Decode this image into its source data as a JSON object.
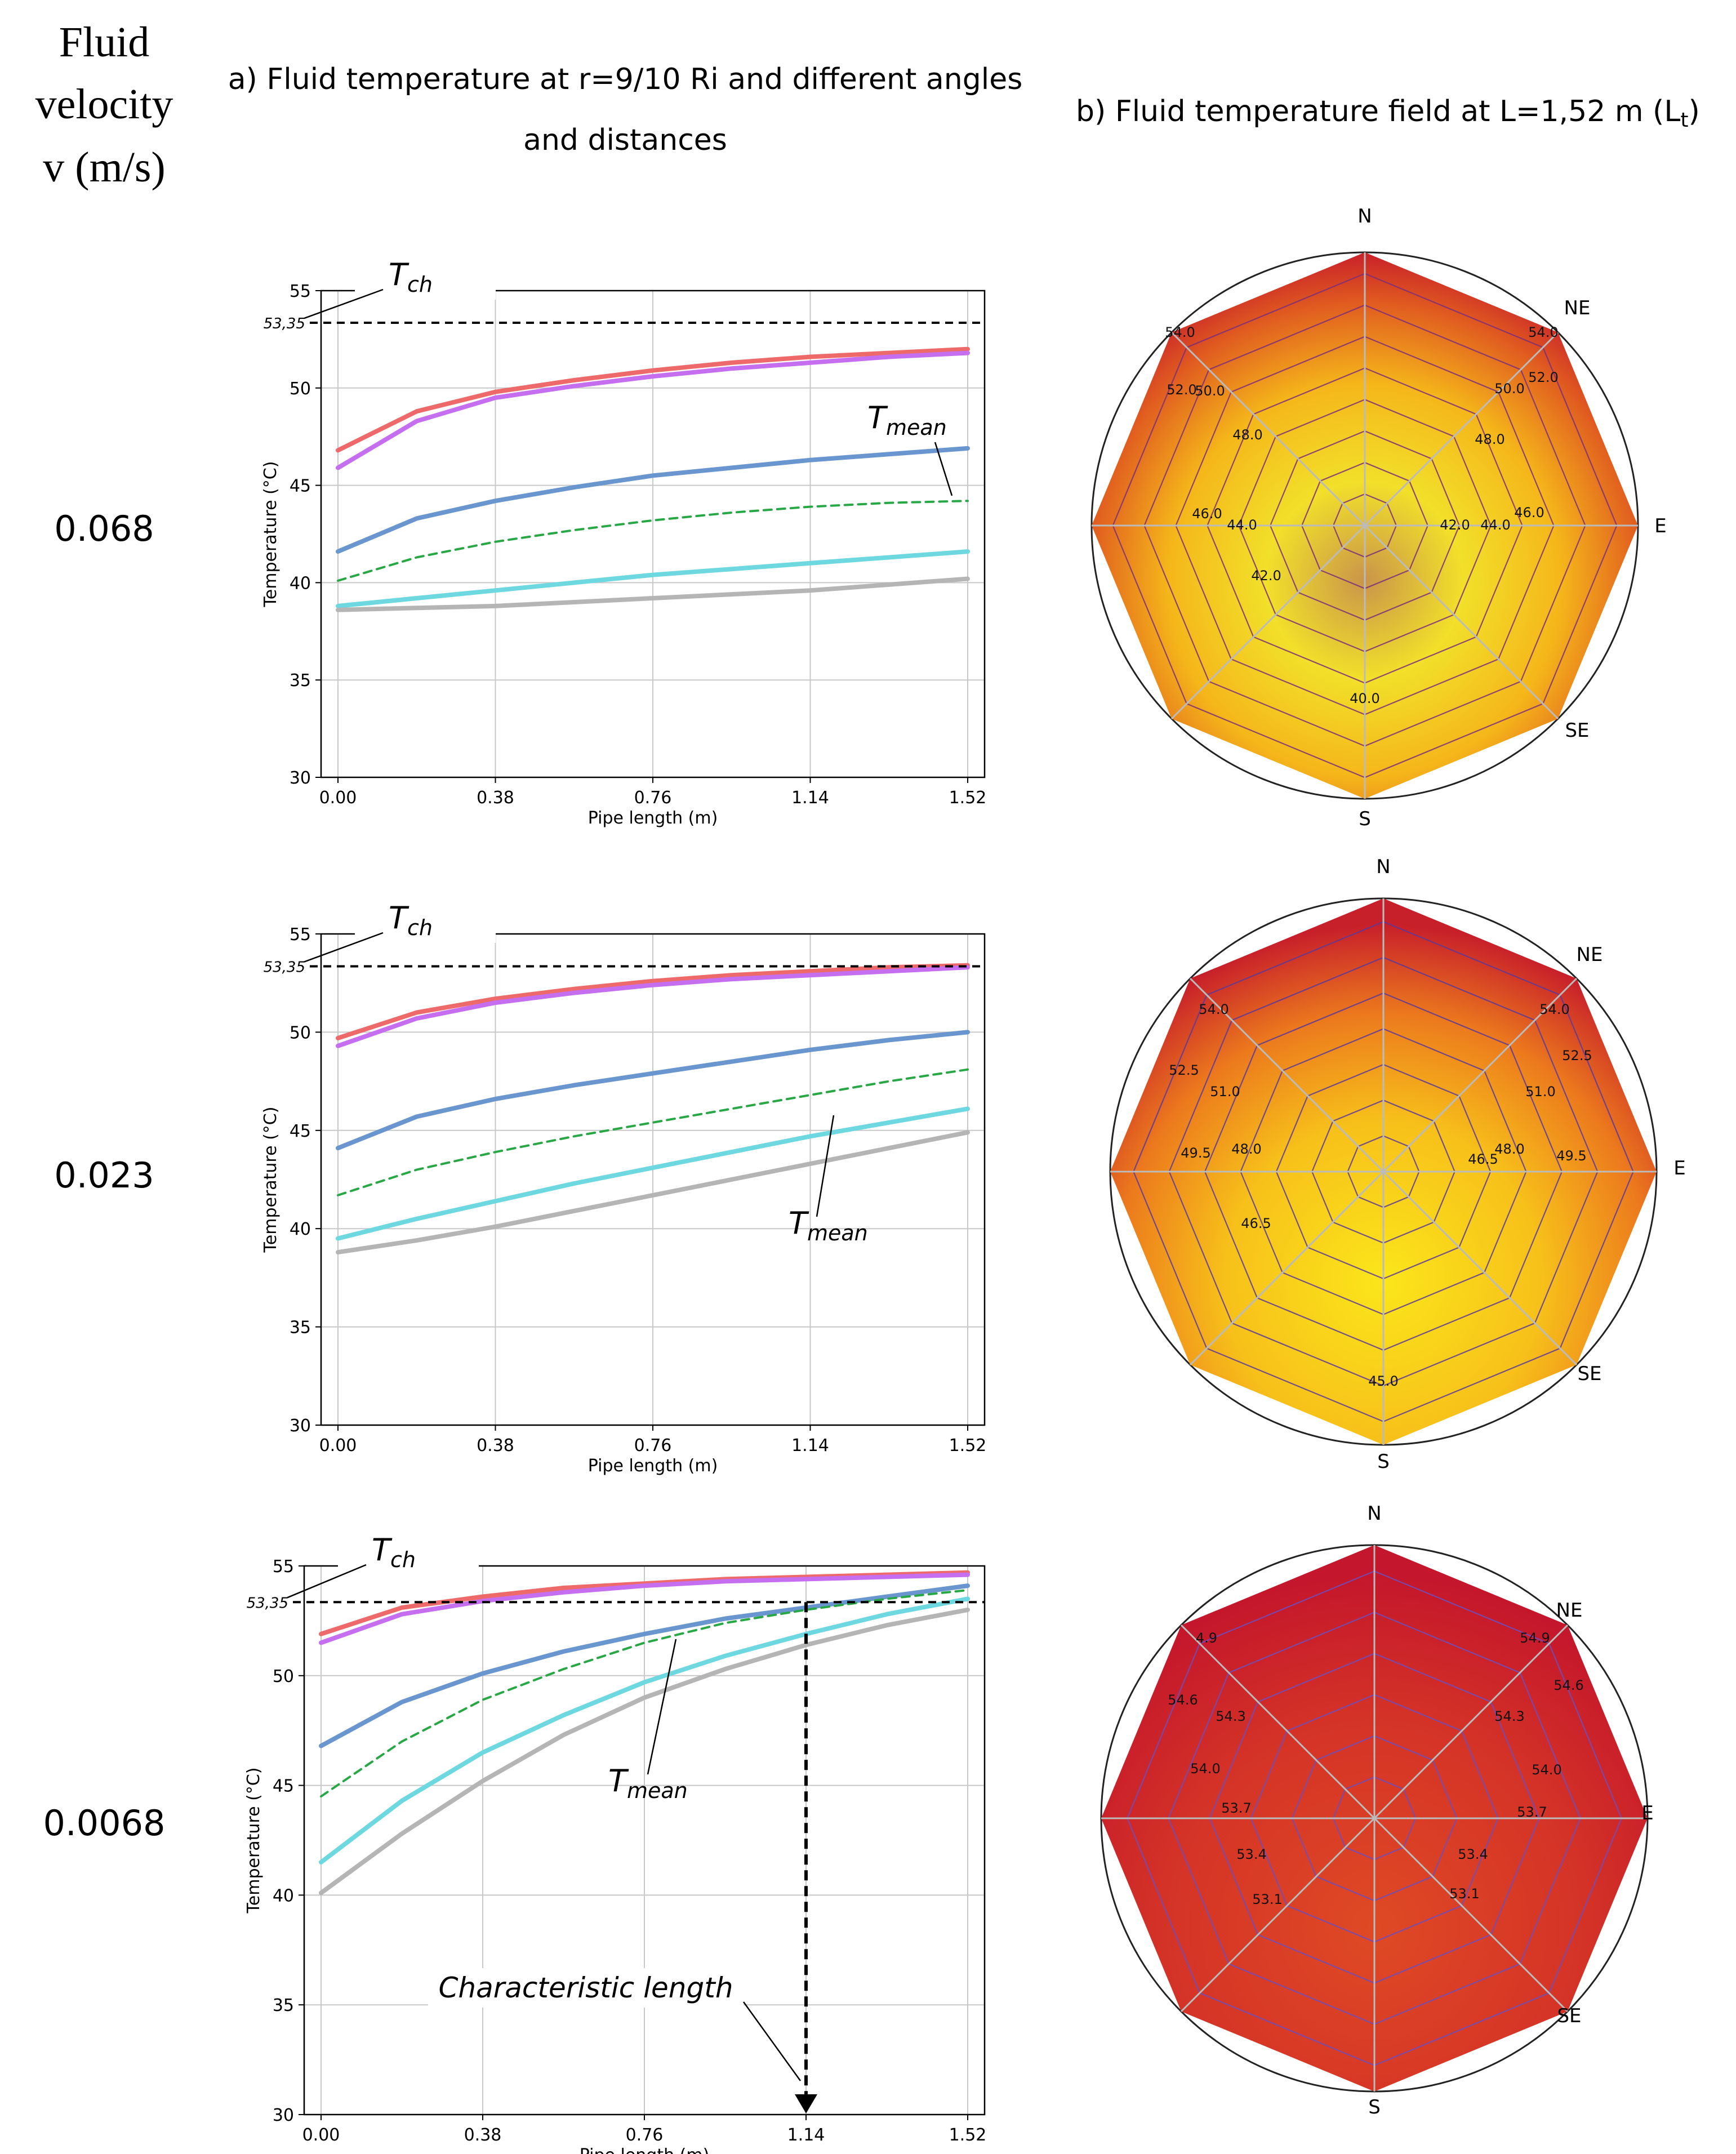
{
  "header": {
    "velocity_title_lines": [
      "Fluid",
      "velocity",
      "v (m/s)"
    ],
    "panel_a_title_lines": [
      "a) Fluid temperature at r=9/10 Ri and different angles",
      "and distances"
    ],
    "panel_b_title": "b) Fluid temperature field at L=1,52 m (L",
    "panel_b_title_sub": "t",
    "panel_b_title_end": ")"
  },
  "rows": [
    {
      "velocity": "0.068"
    },
    {
      "velocity": "0.023"
    },
    {
      "velocity": "0.0068"
    }
  ],
  "annotations": {
    "tch_main": "T",
    "tch_sub": "ch",
    "tmean_main": "T",
    "tmean_sub": "mean",
    "tch_value": "53,35",
    "characteristic_length": "Characteristic length"
  },
  "colors": {
    "red": "#ee6a6a",
    "magenta": "#c56ef0",
    "blue": "#6a96cf",
    "green": "#27a845",
    "cyan": "#6ed8e0",
    "gray": "#b5b5b5",
    "grid": "#c8c8c8"
  },
  "chart_data": [
    {
      "type": "line",
      "xlabel": "Pipe length (m)",
      "ylabel": "Temperature (°C)",
      "xlim": [
        0,
        1.52
      ],
      "ylim": [
        30,
        55
      ],
      "xticks": [
        "0.00",
        "0.38",
        "0.76",
        "1.14",
        "1.52"
      ],
      "yticks": [
        "30",
        "35",
        "40",
        "45",
        "50",
        "55"
      ],
      "grid": true,
      "x": [
        0,
        0.19,
        0.38,
        0.57,
        0.76,
        0.95,
        1.14,
        1.33,
        1.52
      ],
      "series": [
        {
          "values": [
            46.8,
            48.8,
            49.8,
            50.4,
            50.9,
            51.3,
            51.6,
            51.8,
            52.0
          ]
        },
        {
          "values": [
            45.9,
            48.3,
            49.5,
            50.1,
            50.6,
            51.0,
            51.3,
            51.6,
            51.8
          ]
        },
        {
          "values": [
            41.6,
            43.3,
            44.2,
            44.9,
            45.5,
            45.9,
            46.3,
            46.6,
            46.9
          ]
        },
        {
          "values": [
            40.1,
            41.3,
            42.1,
            42.7,
            43.2,
            43.6,
            43.9,
            44.1,
            44.2
          ],
          "dashed": true
        },
        {
          "values": [
            38.8,
            39.2,
            39.6,
            40.0,
            40.4,
            40.7,
            41.0,
            41.3,
            41.6
          ]
        },
        {
          "values": [
            38.6,
            38.7,
            38.8,
            39.0,
            39.2,
            39.4,
            39.6,
            39.9,
            40.2
          ]
        }
      ],
      "tch": 53.35
    },
    {
      "type": "line",
      "xlabel": "Pipe length (m)",
      "ylabel": "Temperature (°C)",
      "xlim": [
        0,
        1.52
      ],
      "ylim": [
        30,
        55
      ],
      "xticks": [
        "0.00",
        "0.38",
        "0.76",
        "1.14",
        "1.52"
      ],
      "yticks": [
        "30",
        "35",
        "40",
        "45",
        "50",
        "55"
      ],
      "grid": true,
      "x": [
        0,
        0.19,
        0.38,
        0.57,
        0.76,
        0.95,
        1.14,
        1.33,
        1.52
      ],
      "series": [
        {
          "values": [
            49.7,
            51.0,
            51.7,
            52.2,
            52.6,
            52.9,
            53.1,
            53.3,
            53.4
          ]
        },
        {
          "values": [
            49.3,
            50.7,
            51.5,
            52.0,
            52.4,
            52.7,
            52.9,
            53.1,
            53.3
          ]
        },
        {
          "values": [
            44.1,
            45.7,
            46.6,
            47.3,
            47.9,
            48.5,
            49.1,
            49.6,
            50.0
          ]
        },
        {
          "values": [
            41.7,
            43.0,
            43.9,
            44.7,
            45.4,
            46.1,
            46.8,
            47.5,
            48.1
          ],
          "dashed": true
        },
        {
          "values": [
            39.5,
            40.5,
            41.4,
            42.3,
            43.1,
            43.9,
            44.7,
            45.4,
            46.1
          ]
        },
        {
          "values": [
            38.8,
            39.4,
            40.1,
            40.9,
            41.7,
            42.5,
            43.3,
            44.1,
            44.9
          ]
        }
      ],
      "tch": 53.35
    },
    {
      "type": "line",
      "xlabel": "Pipe length (m)",
      "ylabel": "Temperature (°C)",
      "xlim": [
        0,
        1.52
      ],
      "ylim": [
        30,
        55
      ],
      "xticks": [
        "0.00",
        "0.38",
        "0.76",
        "1.14",
        "1.52"
      ],
      "yticks": [
        "30",
        "35",
        "40",
        "45",
        "50",
        "55"
      ],
      "grid": true,
      "x": [
        0,
        0.19,
        0.38,
        0.57,
        0.76,
        0.95,
        1.14,
        1.33,
        1.52
      ],
      "series": [
        {
          "values": [
            51.9,
            53.1,
            53.6,
            54.0,
            54.2,
            54.4,
            54.5,
            54.6,
            54.7
          ]
        },
        {
          "values": [
            51.5,
            52.8,
            53.4,
            53.8,
            54.1,
            54.3,
            54.4,
            54.5,
            54.6
          ]
        },
        {
          "values": [
            46.8,
            48.8,
            50.1,
            51.1,
            51.9,
            52.6,
            53.1,
            53.6,
            54.1
          ]
        },
        {
          "values": [
            44.5,
            47.0,
            48.9,
            50.3,
            51.5,
            52.4,
            53.0,
            53.5,
            53.9
          ],
          "dashed": true
        },
        {
          "values": [
            41.5,
            44.3,
            46.5,
            48.2,
            49.7,
            50.9,
            51.9,
            52.8,
            53.5
          ]
        },
        {
          "values": [
            40.1,
            42.8,
            45.2,
            47.3,
            49.0,
            50.3,
            51.4,
            52.3,
            53.0
          ]
        }
      ],
      "tch": 53.35,
      "characteristic_length_x": 1.14
    },
    {
      "type": "heatmap",
      "directions": [
        "N",
        "NE",
        "E",
        "SE",
        "S"
      ],
      "contour_labels": [
        "54.0",
        "54.0",
        "52.0",
        "52.0",
        "50.0",
        "50.0",
        "48.0",
        "48.0",
        "46.0",
        "46.0",
        "44.0",
        "44.0",
        "42.0",
        "42.0",
        "40.0"
      ]
    },
    {
      "type": "heatmap",
      "directions": [
        "N",
        "NE",
        "E",
        "SE",
        "S"
      ],
      "contour_labels": [
        "54.0",
        "54.0",
        "52.5",
        "52.5",
        "51.0",
        "51.0",
        "49.5",
        "49.5",
        "48.0",
        "48.0",
        "46.5",
        "46.5",
        "45.0"
      ]
    },
    {
      "type": "heatmap",
      "directions": [
        "N",
        "NE",
        "E",
        "SE",
        "S"
      ],
      "contour_labels": [
        "4.9",
        "54.9",
        "54.6",
        "54.6",
        "54.3",
        "54.3",
        "54.0",
        "54.0",
        "53.7",
        "53.7",
        "53.4",
        "53.4",
        "53.1",
        "53.1"
      ]
    }
  ]
}
